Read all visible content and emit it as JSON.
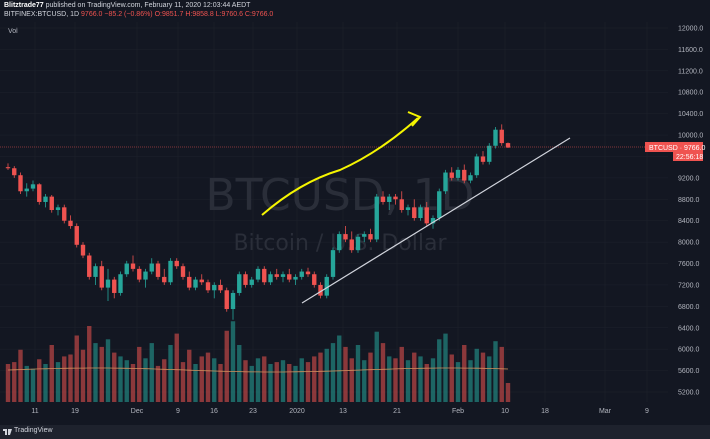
{
  "header": {
    "publisher": "Blitztrade77",
    "published_text": "published on TradingView.com, February 11, 2020 12:03:44 AEDT",
    "symbol_line": "BITFINEX:BTCUSD, 1D",
    "change": "9766.0  −85.2 (−0.86%)",
    "ohlc": "O:9851.7 H:9858.8 L:9760.6 C:9766.0"
  },
  "volume_label": "Vol",
  "watermark": {
    "symbol": "BTCUSD, 1D",
    "name": "Bitcoin / U.S. Dollar"
  },
  "price_badge": {
    "label": "BTCUSD · 9766.0",
    "countdown": "22:56:18"
  },
  "footer": {
    "brand": "TradingView"
  },
  "colors": {
    "background": "#131722",
    "up": "#26a69a",
    "down": "#ef5350",
    "arrow": "#f5f500",
    "trendline": "#d1d4dc",
    "grid": "#1e222d"
  },
  "chart_data": {
    "type": "candlestick",
    "y_axis_ticks": [
      5200,
      5600,
      6000,
      6400,
      6800,
      7200,
      7600,
      8000,
      8400,
      8800,
      9200,
      9600,
      10000,
      10400,
      10800,
      11200,
      11600,
      12000
    ],
    "x_axis_ticks": [
      "11",
      "19",
      "Dec",
      "9",
      "16",
      "23",
      "2020",
      "13",
      "21",
      "Feb",
      "10",
      "18",
      "Mar",
      "9"
    ],
    "last_price": 9766.0,
    "candles": [
      [
        9400,
        9470,
        9350,
        9380
      ],
      [
        9380,
        9420,
        9200,
        9250
      ],
      [
        9250,
        9300,
        8900,
        8950
      ],
      [
        8950,
        9100,
        8850,
        9000
      ],
      [
        9000,
        9150,
        8950,
        9080
      ],
      [
        9080,
        9100,
        8700,
        8750
      ],
      [
        8750,
        8900,
        8650,
        8850
      ],
      [
        8850,
        8880,
        8550,
        8600
      ],
      [
        8600,
        8700,
        8500,
        8650
      ],
      [
        8650,
        8700,
        8350,
        8400
      ],
      [
        8400,
        8500,
        8250,
        8300
      ],
      [
        8300,
        8350,
        7900,
        7950
      ],
      [
        7950,
        8000,
        7700,
        7750
      ],
      [
        7750,
        7800,
        7300,
        7350
      ],
      [
        7350,
        7600,
        7200,
        7550
      ],
      [
        7550,
        7650,
        7100,
        7150
      ],
      [
        7150,
        7500,
        6900,
        7300
      ],
      [
        7300,
        7350,
        6950,
        7050
      ],
      [
        7050,
        7450,
        7000,
        7400
      ],
      [
        7400,
        7650,
        7350,
        7600
      ],
      [
        7600,
        7750,
        7450,
        7500
      ],
      [
        7500,
        7550,
        7250,
        7300
      ],
      [
        7300,
        7500,
        7150,
        7450
      ],
      [
        7450,
        7700,
        7400,
        7600
      ],
      [
        7600,
        7650,
        7300,
        7350
      ],
      [
        7350,
        7500,
        7200,
        7250
      ],
      [
        7250,
        7700,
        7200,
        7650
      ],
      [
        7650,
        7700,
        7500,
        7550
      ],
      [
        7550,
        7600,
        7300,
        7350
      ],
      [
        7350,
        7450,
        7100,
        7150
      ],
      [
        7150,
        7350,
        7100,
        7300
      ],
      [
        7300,
        7400,
        7200,
        7250
      ],
      [
        7250,
        7300,
        7050,
        7100
      ],
      [
        7100,
        7250,
        6950,
        7200
      ],
      [
        7200,
        7300,
        7050,
        7100
      ],
      [
        7100,
        7150,
        6700,
        6750
      ],
      [
        6750,
        7100,
        6550,
        7050
      ],
      [
        7050,
        7450,
        7000,
        7400
      ],
      [
        7400,
        7450,
        7150,
        7200
      ],
      [
        7200,
        7350,
        7150,
        7300
      ],
      [
        7300,
        7550,
        7250,
        7500
      ],
      [
        7500,
        7550,
        7200,
        7250
      ],
      [
        7250,
        7450,
        7200,
        7400
      ],
      [
        7400,
        7500,
        7300,
        7350
      ],
      [
        7350,
        7450,
        7250,
        7400
      ],
      [
        7400,
        7500,
        7250,
        7300
      ],
      [
        7300,
        7400,
        7200,
        7350
      ],
      [
        7350,
        7500,
        7300,
        7450
      ],
      [
        7450,
        7520,
        7350,
        7400
      ],
      [
        7400,
        7450,
        7150,
        7200
      ],
      [
        7200,
        7250,
        6950,
        7000
      ],
      [
        7000,
        7400,
        6950,
        7350
      ],
      [
        7350,
        7900,
        7300,
        7850
      ],
      [
        7850,
        8200,
        7800,
        8150
      ],
      [
        8150,
        8300,
        8000,
        8050
      ],
      [
        8050,
        8200,
        7800,
        7850
      ],
      [
        7850,
        8150,
        7800,
        8100
      ],
      [
        8100,
        8200,
        8000,
        8150
      ],
      [
        8150,
        8250,
        8000,
        8050
      ],
      [
        8050,
        8900,
        8000,
        8850
      ],
      [
        8850,
        8950,
        8700,
        8750
      ],
      [
        8750,
        8900,
        8600,
        8850
      ],
      [
        8850,
        8900,
        8700,
        8800
      ],
      [
        8800,
        8950,
        8550,
        8600
      ],
      [
        8600,
        8700,
        8500,
        8650
      ],
      [
        8650,
        8800,
        8400,
        8450
      ],
      [
        8450,
        8700,
        8400,
        8650
      ],
      [
        8650,
        8750,
        8300,
        8350
      ],
      [
        8350,
        8500,
        8250,
        8450
      ],
      [
        8450,
        9000,
        8400,
        8950
      ],
      [
        8950,
        9350,
        8900,
        9300
      ],
      [
        9300,
        9400,
        9150,
        9200
      ],
      [
        9200,
        9400,
        9150,
        9350
      ],
      [
        9350,
        9450,
        9100,
        9150
      ],
      [
        9150,
        9300,
        9100,
        9250
      ],
      [
        9250,
        9650,
        9200,
        9600
      ],
      [
        9600,
        9700,
        9450,
        9500
      ],
      [
        9500,
        9850,
        9450,
        9800
      ],
      [
        9800,
        10150,
        9750,
        10100
      ],
      [
        10100,
        10200,
        9800,
        9850
      ],
      [
        9850,
        9860,
        9760,
        9766
      ]
    ],
    "volumes": [
      40,
      42,
      55,
      38,
      35,
      45,
      40,
      60,
      42,
      48,
      50,
      70,
      55,
      80,
      62,
      58,
      66,
      52,
      48,
      44,
      40,
      58,
      46,
      62,
      38,
      45,
      60,
      72,
      42,
      55,
      40,
      48,
      52,
      46,
      40,
      75,
      85,
      60,
      44,
      38,
      46,
      48,
      40,
      42,
      44,
      40,
      38,
      46,
      42,
      48,
      52,
      56,
      62,
      70,
      58,
      46,
      60,
      44,
      52,
      74,
      62,
      48,
      46,
      58,
      44,
      52,
      48,
      40,
      46,
      66,
      72,
      50,
      42,
      60,
      44,
      56,
      52,
      48,
      64,
      58,
      20
    ]
  }
}
